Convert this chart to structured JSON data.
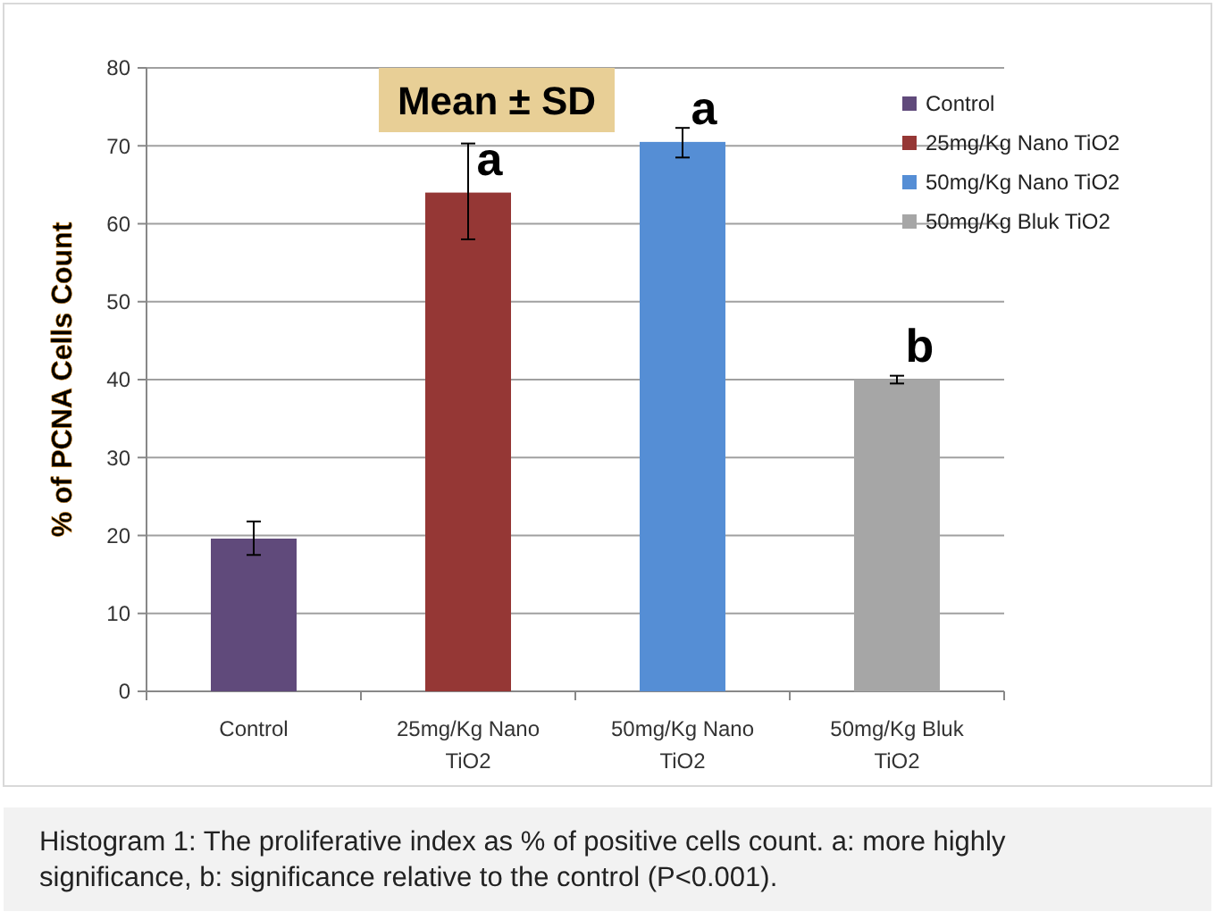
{
  "chart_data": {
    "type": "bar",
    "ylabel": "% of PCNA Cells Count",
    "categories": [
      "Control",
      "25mg/Kg Nano TiO2",
      "50mg/Kg Nano TiO2",
      "50mg/Kg Bluk TiO2"
    ],
    "series": [
      {
        "name": "Control",
        "color": "#604a7b",
        "values": [
          19.6,
          null,
          null,
          null
        ],
        "errors": [
          [
            17.5,
            21.8
          ],
          null,
          null,
          null
        ]
      },
      {
        "name": "25mg/Kg Nano TiO2",
        "color": "#953735",
        "values": [
          null,
          64,
          null,
          null
        ],
        "errors": [
          null,
          [
            58,
            70.3
          ],
          null,
          null
        ]
      },
      {
        "name": "50mg/Kg Nano TiO2",
        "color": "#558ed5",
        "values": [
          null,
          null,
          70.5,
          null
        ],
        "errors": [
          null,
          null,
          [
            68.5,
            72.3
          ],
          null
        ]
      },
      {
        "name": "50mg/Kg Bluk TiO2",
        "color": "#a6a6a6",
        "values": [
          null,
          null,
          null,
          40
        ],
        "errors": [
          null,
          null,
          null,
          [
            39.5,
            40.5
          ]
        ]
      }
    ],
    "ylim": [
      0,
      80
    ],
    "yticks": [
      0,
      10,
      20,
      30,
      40,
      50,
      60,
      70,
      80
    ],
    "grid": "y",
    "legend": "top right",
    "annotations": [
      "Mean ± SD",
      {
        "text": "a",
        "x": "25mg/Kg Nano TiO2",
        "y": 64
      },
      {
        "text": "a",
        "x": "50mg/Kg Nano TiO2",
        "y": 70.5
      },
      {
        "text": "b",
        "x": "50mg/Kg Bluk TiO2",
        "y": 40
      },
      "Histogram 1: The proliferative index as % of positive cells count. a: more highly significance, b: significance relative to the control (P<0.001)."
    ]
  }
}
